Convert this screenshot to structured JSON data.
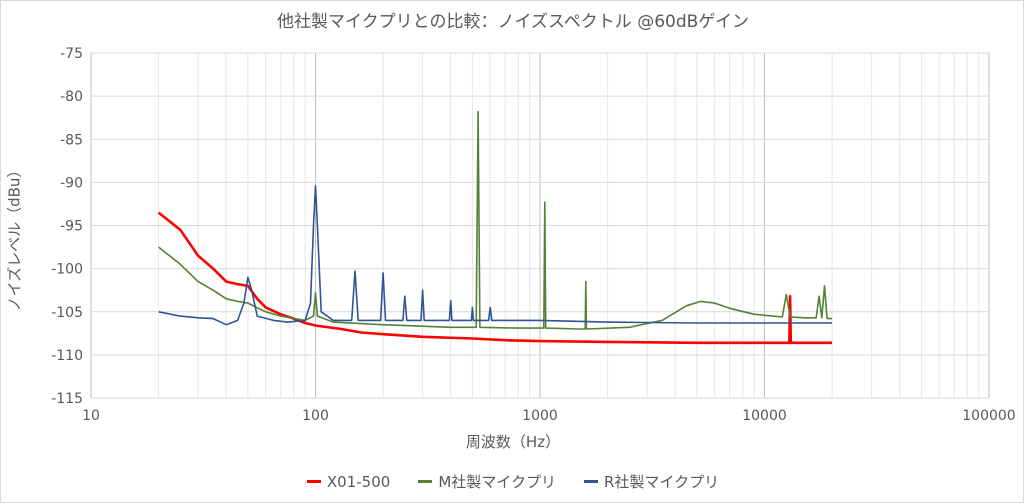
{
  "chart_data": {
    "type": "line",
    "title": "他社製マイクプリとの比較：ノイズスペクトル @60dBゲイン",
    "xlabel": "周波数（Hz）",
    "ylabel": "ノイズレベル（dBu）",
    "x_scale": "log",
    "xlim": [
      10,
      100000
    ],
    "ylim": [
      -115,
      -75
    ],
    "x_ticks": [
      10,
      100,
      1000,
      10000,
      100000
    ],
    "x_tick_labels": [
      "10",
      "100",
      "1000",
      "10000",
      "100000"
    ],
    "y_ticks": [
      -75,
      -80,
      -85,
      -90,
      -95,
      -100,
      -105,
      -110,
      -115
    ],
    "y_tick_labels": [
      "-75",
      "-80",
      "-85",
      "-90",
      "-95",
      "-100",
      "-105",
      "-110",
      "-115"
    ],
    "grid": true,
    "legend_position": "bottom",
    "series": [
      {
        "name": "X01-500",
        "color": "#ff0000",
        "points": [
          [
            20,
            -93.5
          ],
          [
            25,
            -95.5
          ],
          [
            30,
            -98.5
          ],
          [
            35,
            -100
          ],
          [
            40,
            -101.5
          ],
          [
            45,
            -101.8
          ],
          [
            50,
            -102
          ],
          [
            55,
            -103.5
          ],
          [
            60,
            -104.5
          ],
          [
            70,
            -105.3
          ],
          [
            80,
            -105.8
          ],
          [
            90,
            -106.3
          ],
          [
            100,
            -106.6
          ],
          [
            130,
            -107
          ],
          [
            160,
            -107.4
          ],
          [
            200,
            -107.6
          ],
          [
            300,
            -107.9
          ],
          [
            500,
            -108.1
          ],
          [
            700,
            -108.3
          ],
          [
            1000,
            -108.4
          ],
          [
            2000,
            -108.5
          ],
          [
            5000,
            -108.6
          ],
          [
            10000,
            -108.6
          ],
          [
            12900,
            -108.6
          ],
          [
            13000,
            -103.2
          ],
          [
            13100,
            -108.6
          ],
          [
            20000,
            -108.6
          ]
        ]
      },
      {
        "name": "M社製マイクプリ",
        "color": "#548235",
        "points": [
          [
            20,
            -97.5
          ],
          [
            25,
            -99.5
          ],
          [
            30,
            -101.5
          ],
          [
            35,
            -102.5
          ],
          [
            40,
            -103.5
          ],
          [
            45,
            -103.8
          ],
          [
            50,
            -104
          ],
          [
            60,
            -105
          ],
          [
            70,
            -105.5
          ],
          [
            90,
            -106
          ],
          [
            98,
            -105.5
          ],
          [
            100,
            -102.8
          ],
          [
            102,
            -105.5
          ],
          [
            120,
            -106.2
          ],
          [
            200,
            -106.5
          ],
          [
            400,
            -106.8
          ],
          [
            520,
            -106.8
          ],
          [
            530,
            -81.8
          ],
          [
            540,
            -106.8
          ],
          [
            800,
            -106.9
          ],
          [
            1040,
            -106.9
          ],
          [
            1050,
            -92.3
          ],
          [
            1060,
            -106.9
          ],
          [
            1500,
            -107
          ],
          [
            1590,
            -107
          ],
          [
            1600,
            -101.5
          ],
          [
            1610,
            -107
          ],
          [
            2500,
            -106.8
          ],
          [
            3500,
            -106
          ],
          [
            4500,
            -104.3
          ],
          [
            5200,
            -103.8
          ],
          [
            6000,
            -104
          ],
          [
            7000,
            -104.6
          ],
          [
            9000,
            -105.3
          ],
          [
            12000,
            -105.6
          ],
          [
            12500,
            -103
          ],
          [
            13000,
            -105.6
          ],
          [
            15000,
            -105.7
          ],
          [
            17000,
            -105.7
          ],
          [
            17500,
            -103.2
          ],
          [
            18000,
            -105.7
          ],
          [
            18500,
            -102
          ],
          [
            19000,
            -105.8
          ],
          [
            20000,
            -105.8
          ]
        ]
      },
      {
        "name": "R社製マイクプリ",
        "color": "#2f5597",
        "points": [
          [
            20,
            -105
          ],
          [
            25,
            -105.5
          ],
          [
            30,
            -105.7
          ],
          [
            35,
            -105.8
          ],
          [
            40,
            -106.5
          ],
          [
            45,
            -106
          ],
          [
            48,
            -104
          ],
          [
            50,
            -101
          ],
          [
            52,
            -102.5
          ],
          [
            55,
            -105.5
          ],
          [
            65,
            -106
          ],
          [
            75,
            -106.2
          ],
          [
            90,
            -106
          ],
          [
            95,
            -104
          ],
          [
            98,
            -95
          ],
          [
            100,
            -90.4
          ],
          [
            102,
            -95
          ],
          [
            106,
            -105
          ],
          [
            120,
            -106
          ],
          [
            145,
            -106
          ],
          [
            150,
            -100.3
          ],
          [
            155,
            -106
          ],
          [
            195,
            -106
          ],
          [
            200,
            -100.5
          ],
          [
            205,
            -106
          ],
          [
            245,
            -106
          ],
          [
            250,
            -103.2
          ],
          [
            255,
            -106
          ],
          [
            295,
            -106
          ],
          [
            300,
            -102.5
          ],
          [
            305,
            -106
          ],
          [
            395,
            -106
          ],
          [
            400,
            -103.7
          ],
          [
            405,
            -106
          ],
          [
            495,
            -106
          ],
          [
            500,
            -104.5
          ],
          [
            505,
            -106
          ],
          [
            590,
            -106
          ],
          [
            600,
            -104.5
          ],
          [
            610,
            -106
          ],
          [
            1000,
            -106
          ],
          [
            2000,
            -106.2
          ],
          [
            5000,
            -106.3
          ],
          [
            10000,
            -106.3
          ],
          [
            20000,
            -106.3
          ]
        ]
      }
    ]
  }
}
